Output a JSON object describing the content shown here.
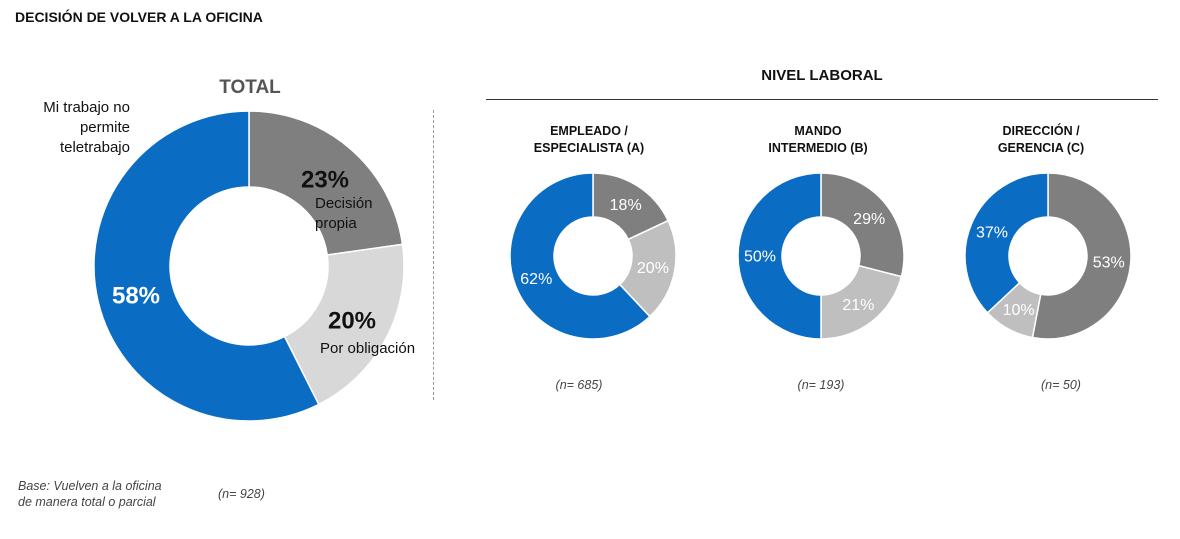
{
  "title": "DECISIÓN DE VOLVER A LA OFICINA",
  "total": {
    "title": "TOTAL",
    "n": "(n= 928)",
    "outer_label_lines": [
      "Mi trabajo no",
      "permite",
      "teletrabajo"
    ],
    "decision_label_lines": [
      "Decisión",
      "propia"
    ],
    "obligacion_label": "Por obligación"
  },
  "nivel_laboral": {
    "title": "NIVEL LABORAL",
    "groups": [
      {
        "title_lines": [
          "EMPLEADO /",
          "ESPECIALISTA (A)"
        ],
        "n": "(n= 685)"
      },
      {
        "title_lines": [
          "MANDO",
          "INTERMEDIO (B)"
        ],
        "n": "(n= 193)"
      },
      {
        "title_lines": [
          "DIRECCIÓN /",
          "GERENCIA (C)"
        ],
        "n": "(n= 50)"
      }
    ]
  },
  "base_note_lines": [
    "Base: Vuelven a la oficina",
    "de manera total o parcial"
  ],
  "colors": {
    "no_teletrabajo": "#0a6cc2",
    "decision_propia": "#7f7f7f",
    "obligacion": "#d8d8d8",
    "obligacion_small": "#bfbfbf"
  },
  "chart_data": [
    {
      "type": "pie",
      "title": "TOTAL",
      "categories": [
        "Decisión propia",
        "Por obligación",
        "Mi trabajo no permite teletrabajo"
      ],
      "values": [
        23,
        20,
        58
      ],
      "value_labels": [
        "23%",
        "20%",
        "58%"
      ]
    },
    {
      "type": "pie",
      "title": "EMPLEADO / ESPECIALISTA (A)",
      "categories": [
        "Decisión propia",
        "Por obligación",
        "Mi trabajo no permite teletrabajo"
      ],
      "values": [
        18,
        20,
        62
      ],
      "value_labels": [
        "18%",
        "20%",
        "62%"
      ]
    },
    {
      "type": "pie",
      "title": "MANDO INTERMEDIO (B)",
      "categories": [
        "Decisión propia",
        "Por obligación",
        "Mi trabajo no permite teletrabajo"
      ],
      "values": [
        29,
        21,
        50
      ],
      "value_labels": [
        "29%",
        "21%",
        "50%"
      ]
    },
    {
      "type": "pie",
      "title": "DIRECCIÓN / GERENCIA (C)",
      "categories": [
        "Decisión propia",
        "Por obligación",
        "Mi trabajo no permite teletrabajo"
      ],
      "values": [
        53,
        10,
        37
      ],
      "value_labels": [
        "53%",
        "10%",
        "37%"
      ]
    }
  ]
}
